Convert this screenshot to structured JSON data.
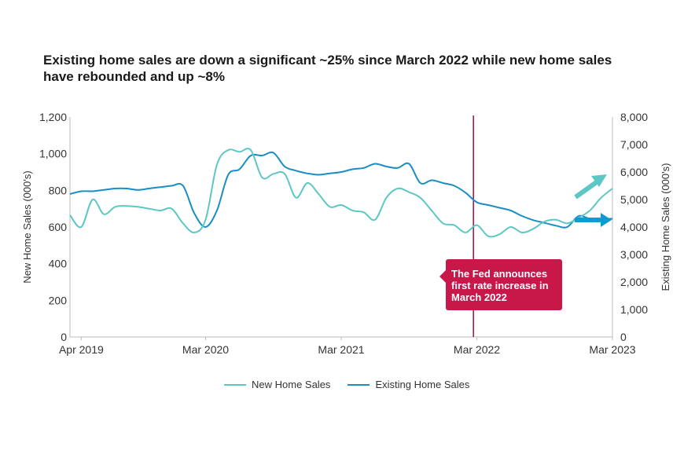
{
  "title": "Existing home sales are down a significant ~25% since March 2022 while new home sales have rebounded and up ~8%",
  "annotation": "The Fed announces first rate increase in March 2022",
  "colors": {
    "new_home": "#5cc7c4",
    "existing_home": "#1a8dc4",
    "fed_line": "#a0103a",
    "annotation_bg": "#c8184a",
    "arrow_up": "#5cc7c4",
    "arrow_right": "#0f9bd2"
  },
  "chart_data": {
    "type": "line",
    "title": "Existing home sales are down a significant ~25% since March 2022 while new home sales have rebounded and up ~8%",
    "xlabel": "",
    "ylabel": "New Home Sales (000's)",
    "y2label": "Existing Home Sales (000's)",
    "ylim": [
      0,
      1200
    ],
    "y2lim": [
      0,
      8000
    ],
    "yticks": [
      "0",
      "200",
      "400",
      "600",
      "800",
      "1,000",
      "1,200"
    ],
    "y2ticks": [
      "0",
      "1,000",
      "2,000",
      "3,000",
      "4,000",
      "5,000",
      "6,000",
      "7,000",
      "8,000"
    ],
    "xticks": [
      {
        "label": "Apr 2019",
        "month": 1
      },
      {
        "label": "Mar 2020",
        "month": 12
      },
      {
        "label": "Mar 2021",
        "month": 24
      },
      {
        "label": "Mar 2022",
        "month": 36
      },
      {
        "label": "Mar 2023",
        "month": 48
      }
    ],
    "x": [
      "Mar 2019",
      "Apr 2019",
      "May 2019",
      "Jun 2019",
      "Jul 2019",
      "Aug 2019",
      "Sep 2019",
      "Oct 2019",
      "Nov 2019",
      "Dec 2019",
      "Jan 2020",
      "Feb 2020",
      "Mar 2020",
      "Apr 2020",
      "May 2020",
      "Jun 2020",
      "Jul 2020",
      "Aug 2020",
      "Sep 2020",
      "Oct 2020",
      "Nov 2020",
      "Dec 2020",
      "Jan 2021",
      "Feb 2021",
      "Mar 2021",
      "Apr 2021",
      "May 2021",
      "Jun 2021",
      "Jul 2021",
      "Aug 2021",
      "Sep 2021",
      "Oct 2021",
      "Nov 2021",
      "Dec 2021",
      "Jan 2022",
      "Feb 2022",
      "Mar 2022",
      "Apr 2022",
      "May 2022",
      "Jun 2022",
      "Jul 2022",
      "Aug 2022",
      "Sep 2022",
      "Oct 2022",
      "Nov 2022",
      "Dec 2022",
      "Jan 2023",
      "Feb 2023",
      "Mar 2023"
    ],
    "series": [
      {
        "name": "New Home Sales",
        "axis": "left",
        "values": [
          665,
          600,
          750,
          670,
          710,
          715,
          710,
          700,
          690,
          700,
          620,
          570,
          640,
          940,
          1020,
          1010,
          1020,
          870,
          890,
          890,
          760,
          840,
          780,
          710,
          720,
          690,
          680,
          640,
          760,
          810,
          790,
          760,
          690,
          620,
          610,
          570,
          610,
          550,
          560,
          600,
          570,
          590,
          630,
          640,
          620,
          650,
          690,
          760,
          810
        ]
      },
      {
        "name": "Existing Home Sales",
        "axis": "right",
        "values": [
          5200,
          5300,
          5300,
          5350,
          5400,
          5400,
          5350,
          5400,
          5450,
          5500,
          5500,
          4500,
          4000,
          4600,
          5900,
          6100,
          6600,
          6600,
          6700,
          6200,
          6050,
          5950,
          5900,
          5950,
          6000,
          6100,
          6150,
          6300,
          6200,
          6150,
          6300,
          5600,
          5700,
          5600,
          5500,
          5250,
          4900,
          4800,
          4700,
          4600,
          4400,
          4250,
          4150,
          4050,
          4000,
          4400,
          4300,
          4300,
          4300
        ]
      }
    ],
    "event_line": {
      "month": 35.7,
      "label": "The Fed announces first rate increase in March 2022"
    },
    "legend": "bottom-center"
  }
}
